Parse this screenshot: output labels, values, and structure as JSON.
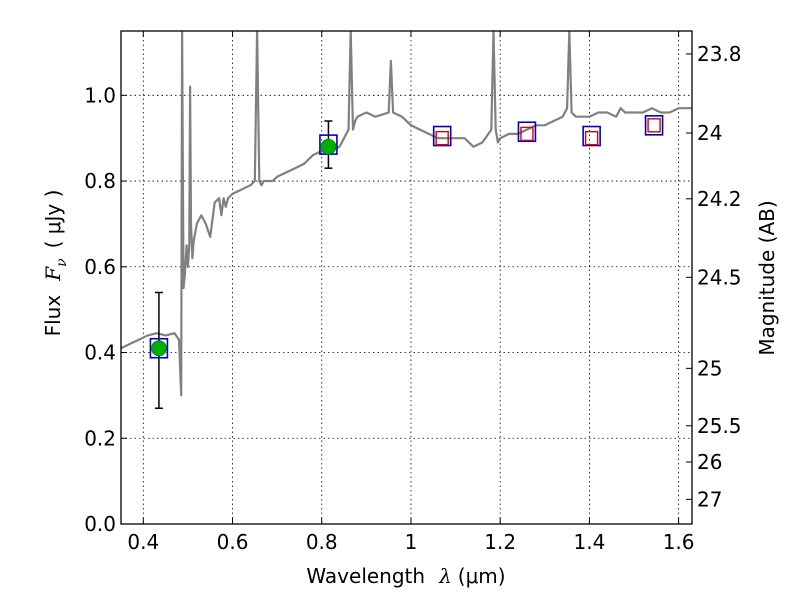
{
  "chart_data": {
    "type": "scatter",
    "xlabel": {
      "pre": "Wavelength",
      "sym": "λ",
      "unit": "(μm)"
    },
    "ylabel": {
      "pre": "Flux",
      "sym": "F",
      "sub": "ν",
      "unit": "( μJy )"
    },
    "y2label": "Magnitude (AB)",
    "xlim": [
      0.35,
      1.63
    ],
    "ylim": [
      0.0,
      1.15
    ],
    "grid": true,
    "x_ticks": [
      {
        "value": 0.4,
        "label": "0.4"
      },
      {
        "value": 0.6,
        "label": "0.6"
      },
      {
        "value": 0.8,
        "label": "0.8"
      },
      {
        "value": 1.0,
        "label": "1"
      },
      {
        "value": 1.2,
        "label": "1.2"
      },
      {
        "value": 1.4,
        "label": "1.4"
      },
      {
        "value": 1.6,
        "label": "1.6"
      }
    ],
    "y_ticks": [
      {
        "value": 0.0,
        "label": "0.0"
      },
      {
        "value": 0.2,
        "label": "0.2"
      },
      {
        "value": 0.4,
        "label": "0.4"
      },
      {
        "value": 0.6,
        "label": "0.6"
      },
      {
        "value": 0.8,
        "label": "0.8"
      },
      {
        "value": 1.0,
        "label": "1.0"
      }
    ],
    "y2_ticks": [
      {
        "mag": 23.8,
        "label": "23.8"
      },
      {
        "mag": 24.0,
        "label": "24"
      },
      {
        "mag": 24.2,
        "label": "24.2"
      },
      {
        "mag": 24.5,
        "label": "24.5"
      },
      {
        "mag": 25.0,
        "label": "25"
      },
      {
        "mag": 25.5,
        "label": "25.5"
      },
      {
        "mag": 26.0,
        "label": "26"
      },
      {
        "mag": 27.0,
        "label": "27"
      }
    ],
    "spectrum": {
      "color": "#808080",
      "x": [
        0.35,
        0.37,
        0.39,
        0.41,
        0.43,
        0.45,
        0.47,
        0.48,
        0.485,
        0.487,
        0.49,
        0.493,
        0.497,
        0.5,
        0.503,
        0.505,
        0.507,
        0.51,
        0.513,
        0.52,
        0.53,
        0.54,
        0.55,
        0.56,
        0.57,
        0.575,
        0.58,
        0.585,
        0.59,
        0.6,
        0.62,
        0.64,
        0.65,
        0.655,
        0.66,
        0.665,
        0.67,
        0.69,
        0.7,
        0.72,
        0.74,
        0.76,
        0.77,
        0.78,
        0.8,
        0.82,
        0.84,
        0.85,
        0.86,
        0.865,
        0.87,
        0.875,
        0.88,
        0.9,
        0.92,
        0.95,
        0.955,
        0.96,
        0.98,
        1.0,
        1.02,
        1.04,
        1.06,
        1.08,
        1.1,
        1.12,
        1.14,
        1.16,
        1.18,
        1.185,
        1.19,
        1.195,
        1.2,
        1.22,
        1.24,
        1.26,
        1.28,
        1.3,
        1.32,
        1.34,
        1.35,
        1.355,
        1.36,
        1.37,
        1.4,
        1.42,
        1.44,
        1.46,
        1.47,
        1.48,
        1.5,
        1.52,
        1.54,
        1.56,
        1.58,
        1.6,
        1.62,
        1.63
      ],
      "y": [
        0.41,
        0.42,
        0.43,
        0.44,
        0.445,
        0.44,
        0.445,
        0.43,
        0.3,
        1.15,
        0.55,
        0.58,
        0.65,
        0.6,
        0.65,
        1.02,
        0.7,
        0.62,
        0.66,
        0.7,
        0.72,
        0.7,
        0.67,
        0.75,
        0.76,
        0.72,
        0.76,
        0.74,
        0.76,
        0.77,
        0.78,
        0.79,
        0.8,
        1.15,
        0.8,
        0.79,
        0.8,
        0.8,
        0.81,
        0.82,
        0.83,
        0.84,
        0.85,
        0.86,
        0.87,
        0.87,
        0.88,
        0.9,
        0.92,
        1.15,
        0.92,
        0.94,
        0.95,
        0.96,
        0.95,
        0.96,
        1.08,
        0.96,
        0.95,
        0.93,
        0.92,
        0.91,
        0.9,
        0.9,
        0.9,
        0.9,
        0.88,
        0.89,
        0.92,
        1.15,
        0.92,
        0.89,
        0.9,
        0.91,
        0.91,
        0.92,
        0.93,
        0.93,
        0.94,
        0.95,
        0.97,
        1.15,
        0.96,
        0.95,
        0.95,
        0.96,
        0.96,
        0.95,
        0.97,
        0.96,
        0.96,
        0.96,
        0.97,
        0.96,
        0.96,
        0.97,
        0.97,
        0.97
      ]
    },
    "points_observed": {
      "color": "#00b000",
      "x": [
        0.435,
        0.815
      ],
      "y": [
        0.41,
        0.88
      ],
      "err_low": [
        0.14,
        0.05
      ],
      "err_high": [
        0.13,
        0.06
      ]
    },
    "points_model_band": {
      "color": "#0000cc",
      "x": [
        0.435,
        0.815,
        1.07,
        1.26,
        1.405,
        1.545
      ],
      "y": [
        0.41,
        0.885,
        0.905,
        0.915,
        0.905,
        0.93
      ]
    },
    "points_predicted": {
      "color": "#dd0000",
      "x": [
        1.07,
        1.26,
        1.405,
        1.545
      ],
      "y": [
        0.9,
        0.91,
        0.9,
        0.93
      ]
    }
  }
}
